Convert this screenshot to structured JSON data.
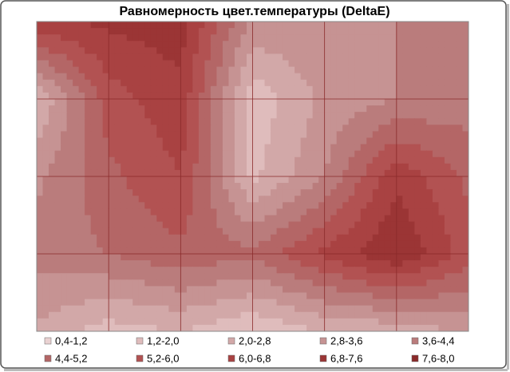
{
  "chart_data": {
    "type": "contour",
    "title": "Равномерность цвет.температуры (DeltaE)",
    "z": [
      [
        6.6,
        7.0,
        7.2,
        3.4,
        3.6,
        3.6,
        4.0
      ],
      [
        2.0,
        5.6,
        6.6,
        1.4,
        3.0,
        3.6,
        4.0
      ],
      [
        3.4,
        5.0,
        6.0,
        1.8,
        3.6,
        6.6,
        5.0
      ],
      [
        4.0,
        4.4,
        5.0,
        4.6,
        6.2,
        7.6,
        5.6
      ],
      [
        2.6,
        1.6,
        2.0,
        1.2,
        2.0,
        2.2,
        3.0
      ]
    ],
    "levels": [
      0.4,
      1.2,
      2.0,
      2.8,
      3.6,
      4.4,
      5.2,
      6.0,
      6.8,
      7.6,
      8.0
    ],
    "series": [
      {
        "name": "0,4-1,2",
        "color": "#ead2d2"
      },
      {
        "name": "1,2-2,0",
        "color": "#dfbcbc"
      },
      {
        "name": "2,0-2,8",
        "color": "#d2a8a8"
      },
      {
        "name": "2,8-3,6",
        "color": "#c69393"
      },
      {
        "name": "3,6-4,4",
        "color": "#ba7c7c"
      },
      {
        "name": "4,4-5,2",
        "color": "#b46666"
      },
      {
        "name": "5,2-6,0",
        "color": "#b25252"
      },
      {
        "name": "6,0-6,8",
        "color": "#a94242"
      },
      {
        "name": "6,8-7,6",
        "color": "#9b3535"
      },
      {
        "name": "7,6-8,0",
        "color": "#8a2a2a"
      }
    ],
    "grid": true
  }
}
